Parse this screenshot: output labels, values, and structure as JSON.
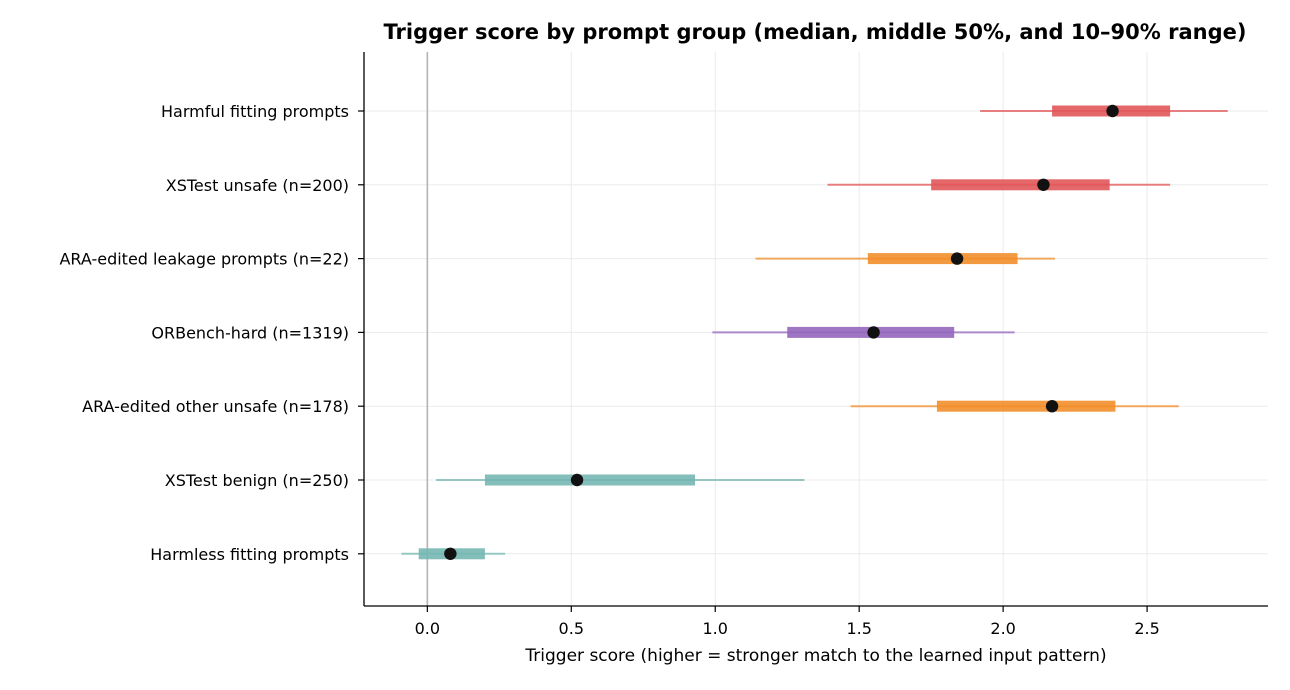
{
  "chart_data": {
    "type": "range-plot",
    "title": "Trigger score by prompt group (median, middle 50%, and 10–90% range)",
    "xlabel": "Trigger score (higher = stronger match to the learned input pattern)",
    "ylabel": "",
    "xlim": [
      -0.22,
      2.92
    ],
    "xticks": [
      0.0,
      0.5,
      1.0,
      1.5,
      2.0,
      2.5
    ],
    "xtick_labels": [
      "0.0",
      "0.5",
      "1.0",
      "1.5",
      "2.0",
      "2.5"
    ],
    "grid": true,
    "reference_line_x": 0.0,
    "groups": [
      {
        "label": "Harmful fitting prompts",
        "p10": 1.92,
        "q1": 2.17,
        "median": 2.38,
        "q3": 2.58,
        "p90": 2.78,
        "color": "#e15759"
      },
      {
        "label": "XSTest unsafe (n=200)",
        "p10": 1.39,
        "q1": 1.75,
        "median": 2.14,
        "q3": 2.37,
        "p90": 2.58,
        "color": "#e15759"
      },
      {
        "label": "ARA-edited leakage prompts (n=22)",
        "p10": 1.14,
        "q1": 1.53,
        "median": 1.84,
        "q3": 2.05,
        "p90": 2.18,
        "color": "#f28e2b"
      },
      {
        "label": "ORBench-hard (n=1319)",
        "p10": 0.99,
        "q1": 1.25,
        "median": 1.55,
        "q3": 1.83,
        "p90": 2.04,
        "color": "#9467bd"
      },
      {
        "label": "ARA-edited other unsafe (n=178)",
        "p10": 1.47,
        "q1": 1.77,
        "median": 2.17,
        "q3": 2.39,
        "p90": 2.61,
        "color": "#f28e2b"
      },
      {
        "label": "XSTest benign (n=250)",
        "p10": 0.03,
        "q1": 0.2,
        "median": 0.52,
        "q3": 0.93,
        "p90": 1.31,
        "color": "#76b7b2"
      },
      {
        "label": "Harmless fitting prompts",
        "p10": -0.09,
        "q1": -0.03,
        "median": 0.08,
        "q3": 0.2,
        "p90": 0.27,
        "color": "#76b7b2"
      }
    ]
  }
}
